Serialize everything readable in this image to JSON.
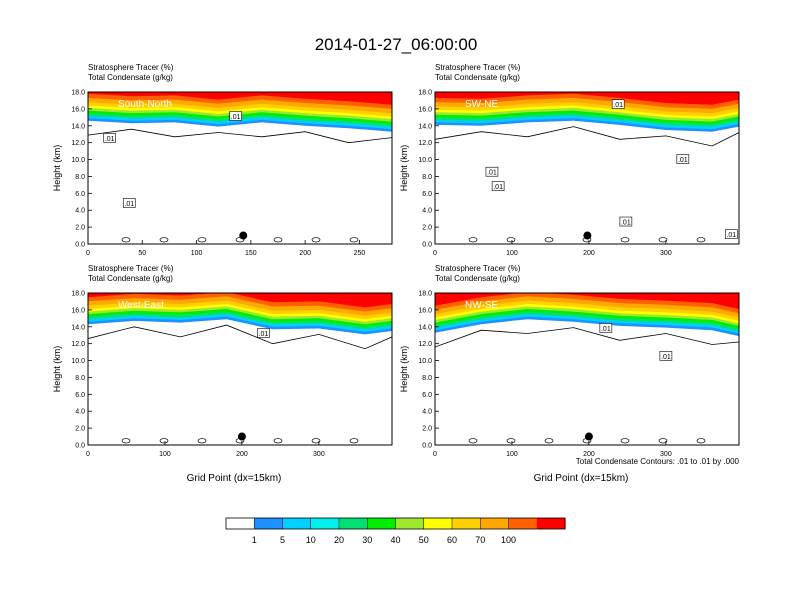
{
  "title": "2014-01-27_06:00:00",
  "footnote": "Total Condensate Contours: .01 to .01 by .000",
  "chart_data": [
    {
      "type": "heatmap",
      "name": "South-North",
      "panel_label": "South-North",
      "header_lines": [
        "Stratosphere Tracer   (%)",
        "Total Condensate   (g/kg)"
      ],
      "ylabel": "Height (km)",
      "xlabel": "",
      "xlim": [
        0,
        280
      ],
      "ylim": [
        0,
        18
      ],
      "xticks": [
        0,
        50,
        100,
        150,
        200,
        250
      ],
      "yticks": [
        0,
        2,
        4,
        6,
        8,
        10,
        12,
        14,
        16,
        18
      ],
      "contour_labels": [
        {
          "text": ".01",
          "x": 20,
          "y": 12.5
        },
        {
          "text": ".01",
          "x": 38,
          "y": 4.8
        },
        {
          "text": ".01",
          "x": 136,
          "y": 15.1
        }
      ],
      "marker": {
        "x": 143,
        "y": 1.0
      },
      "tracer_top_profile": {
        "x": [
          0,
          40,
          80,
          120,
          160,
          200,
          240,
          280
        ],
        "y": [
          15.5,
          15.2,
          15.3,
          14.8,
          15.3,
          14.9,
          14.6,
          14.2
        ]
      }
    },
    {
      "type": "heatmap",
      "name": "SW-NE",
      "panel_label": "SW-NE",
      "header_lines": [
        "Stratosphere Tracer   (%)",
        "Total Condensate   (g/kg)"
      ],
      "ylabel": "Height (km)",
      "xlabel": "",
      "xlim": [
        0,
        395
      ],
      "ylim": [
        0,
        18
      ],
      "xticks": [
        0,
        100,
        200,
        300
      ],
      "yticks": [
        0,
        2,
        4,
        6,
        8,
        10,
        12,
        14,
        16,
        18
      ],
      "contour_labels": [
        {
          "text": ".01",
          "x": 238,
          "y": 16.5
        },
        {
          "text": ".01",
          "x": 74,
          "y": 8.5
        },
        {
          "text": ".01",
          "x": 82,
          "y": 6.8
        },
        {
          "text": ".01",
          "x": 322,
          "y": 10.0
        },
        {
          "text": ".01",
          "x": 248,
          "y": 2.6
        },
        {
          "text": ".01",
          "x": 385,
          "y": 1.1
        }
      ],
      "marker": {
        "x": 198,
        "y": 1.0
      },
      "tracer_top_profile": {
        "x": [
          0,
          60,
          120,
          180,
          240,
          300,
          360,
          395
        ],
        "y": [
          15.0,
          14.9,
          15.3,
          15.5,
          15.0,
          14.4,
          14.2,
          14.8
        ]
      }
    },
    {
      "type": "heatmap",
      "name": "West-East",
      "panel_label": "West-East",
      "header_lines": [
        "Stratosphere Tracer   (%)",
        "Total Condensate   (g/kg)"
      ],
      "ylabel": "Height (km)",
      "xlabel": "Grid Point (dx=15km)",
      "xlim": [
        0,
        395
      ],
      "ylim": [
        0,
        18
      ],
      "xticks": [
        0,
        100,
        200,
        300
      ],
      "yticks": [
        0,
        2,
        4,
        6,
        8,
        10,
        12,
        14,
        16,
        18
      ],
      "contour_labels": [
        {
          "text": ".01",
          "x": 228,
          "y": 13.2
        }
      ],
      "marker": {
        "x": 200,
        "y": 1.0
      },
      "tracer_top_profile": {
        "x": [
          0,
          60,
          120,
          180,
          240,
          300,
          360,
          395
        ],
        "y": [
          15.2,
          15.6,
          15.4,
          15.8,
          14.6,
          14.7,
          14.0,
          14.4
        ]
      }
    },
    {
      "type": "heatmap",
      "name": "NW-SE",
      "panel_label": "NW-SE",
      "header_lines": [
        "Stratosphere Tracer   (%)",
        "Total Condensate   (g/kg)"
      ],
      "ylabel": "Height (km)",
      "xlabel": "Grid Point (dx=15km)",
      "xlim": [
        0,
        395
      ],
      "ylim": [
        0,
        18
      ],
      "xticks": [
        0,
        100,
        200,
        300
      ],
      "yticks": [
        0,
        2,
        4,
        6,
        8,
        10,
        12,
        14,
        16,
        18
      ],
      "contour_labels": [
        {
          "text": ".01",
          "x": 222,
          "y": 13.8
        },
        {
          "text": ".01",
          "x": 300,
          "y": 10.5
        }
      ],
      "marker": {
        "x": 200,
        "y": 1.0
      },
      "tracer_top_profile": {
        "x": [
          0,
          60,
          120,
          180,
          240,
          300,
          360,
          395
        ],
        "y": [
          14.2,
          15.2,
          15.8,
          15.5,
          15.0,
          14.8,
          14.5,
          13.8
        ]
      }
    }
  ],
  "colorbar": {
    "levels": [
      "1",
      "5",
      "10",
      "20",
      "30",
      "40",
      "50",
      "60",
      "70",
      "100"
    ],
    "colors": [
      "#ffffff",
      "#1e90ff",
      "#00d0ff",
      "#00f0f0",
      "#00e070",
      "#00ee00",
      "#a0e830",
      "#ffff00",
      "#ffd000",
      "#ffa800",
      "#ff6000",
      "#ff0000"
    ]
  }
}
